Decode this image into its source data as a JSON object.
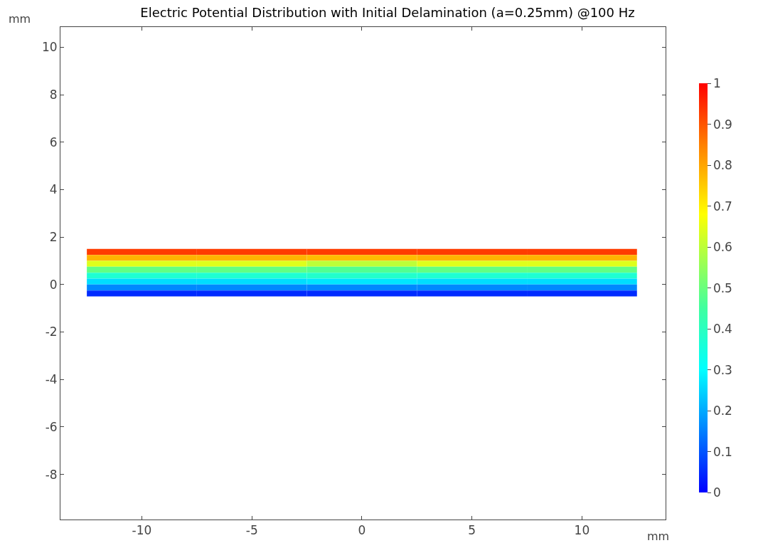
{
  "chart_data": {
    "type": "heatmap",
    "title": "Electric Potential Distribution with Initial Delamination (a=0.25mm) @100 Hz",
    "xlabel": "mm",
    "ylabel": "mm",
    "x": [
      -10,
      -5,
      0,
      5,
      10
    ],
    "y": [
      1.375,
      1.125,
      0.875,
      0.625,
      0.375,
      0.125,
      -0.125,
      -0.375
    ],
    "cells": [
      [
        0.93,
        0.93,
        0.93,
        0.93,
        0.93
      ],
      [
        0.78,
        0.78,
        0.77,
        0.78,
        0.78
      ],
      [
        0.64,
        0.64,
        0.6,
        0.64,
        0.64
      ],
      [
        0.49,
        0.49,
        0.47,
        0.49,
        0.49
      ],
      [
        0.37,
        0.37,
        0.38,
        0.37,
        0.37
      ],
      [
        0.26,
        0.26,
        0.27,
        0.26,
        0.26
      ],
      [
        0.16,
        0.16,
        0.16,
        0.16,
        0.16
      ],
      [
        0.05,
        0.05,
        0.05,
        0.05,
        0.05
      ]
    ],
    "xlim": [
      -13.7,
      13.8
    ],
    "xticks": [
      -10,
      -5,
      0,
      5,
      10
    ],
    "ylim": [
      -9.9,
      10.85
    ],
    "yticks": [
      -8,
      -6,
      -4,
      -2,
      0,
      2,
      4,
      6,
      8,
      10
    ],
    "clim": [
      0,
      1
    ],
    "cticks": [
      0,
      0.1,
      0.2,
      0.3,
      0.4,
      0.5,
      0.6,
      0.7,
      0.8,
      0.9,
      1
    ],
    "grid": false
  }
}
